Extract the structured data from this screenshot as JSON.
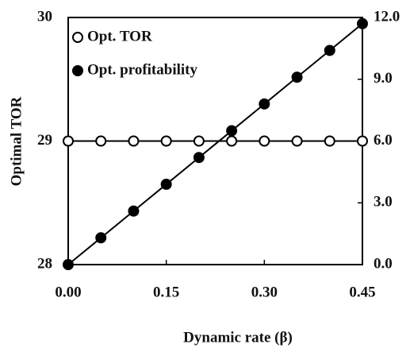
{
  "chart_data": {
    "type": "line",
    "x_label": "Dynamic rate (β)",
    "y_label": "Optimal TOR",
    "x": [
      0,
      0.05,
      0.1,
      0.15,
      0.2,
      0.25,
      0.3,
      0.35,
      0.4,
      0.45
    ],
    "series": [
      {
        "name": "Opt. TOR",
        "color": "#000000",
        "filled": false,
        "axis": "y",
        "values": [
          29,
          29,
          29,
          29,
          29,
          29,
          29,
          29,
          29,
          29
        ]
      },
      {
        "name": "Opt. profitability",
        "color": "#000000",
        "filled": true,
        "axis": "y2",
        "values": [
          0,
          1.3,
          2.6,
          3.9,
          5.2,
          6.5,
          7.8,
          9.1,
          10.4,
          11.7
        ]
      }
    ],
    "xlim": [
      0,
      0.45
    ],
    "xticks": [
      {
        "value": 0,
        "label": "0.00"
      },
      {
        "value": 0.15,
        "label": "0.15"
      },
      {
        "value": 0.3,
        "label": "0.30"
      },
      {
        "value": 0.45,
        "label": "0.45"
      }
    ],
    "ylim": [
      28,
      30
    ],
    "yticks": [
      28,
      29,
      30
    ],
    "y2lim": [
      0,
      12
    ],
    "y2ticks": [
      {
        "value": 0,
        "label": "0.0"
      },
      {
        "value": 3,
        "label": "3.0"
      },
      {
        "value": 6,
        "label": "6.0"
      },
      {
        "value": 9,
        "label": "9.0"
      },
      {
        "value": 12,
        "label": "12.0"
      }
    ],
    "legend": "upper-left"
  }
}
